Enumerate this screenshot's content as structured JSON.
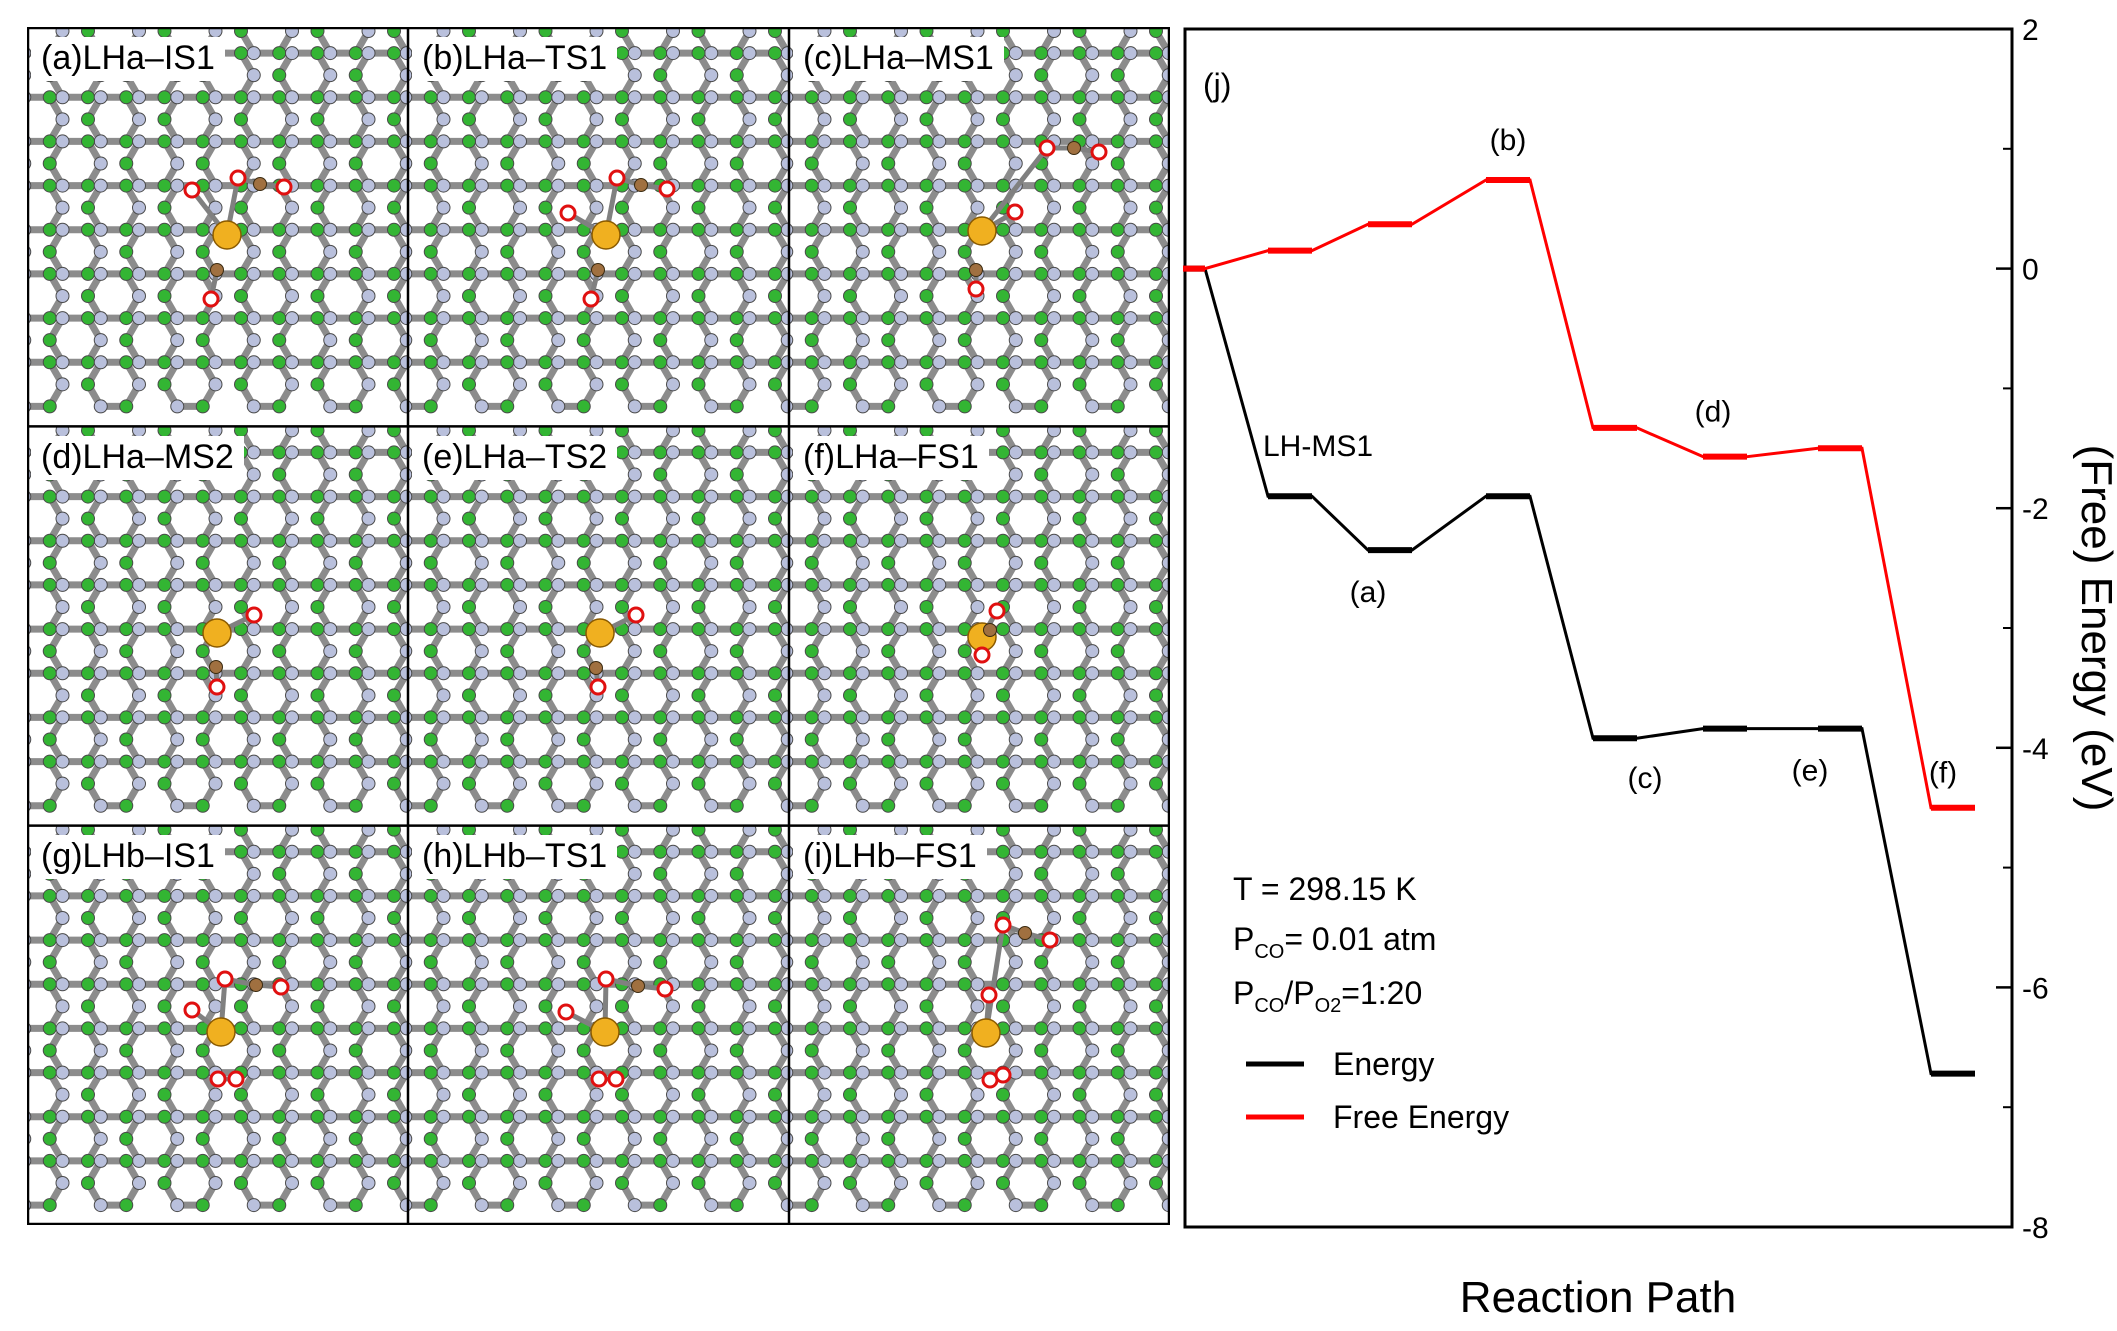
{
  "panels": [
    {
      "label": "(a)LHa–IS1"
    },
    {
      "label": "(b)LHa–TS1"
    },
    {
      "label": "(c)LHa–MS1"
    },
    {
      "label": "(d)LHa–MS2"
    },
    {
      "label": "(e)LHa–TS2"
    },
    {
      "label": "(f)LHa–FS1"
    },
    {
      "label": "(g)LHb–IS1"
    },
    {
      "label": "(h)LHb–TS1"
    },
    {
      "label": "(i)LHb–FS1"
    }
  ],
  "atom_colors": {
    "lattice_a": "#33b533",
    "lattice_b": "#b9c0dc",
    "bond": "#8c8c8c",
    "metal": "#f0b020",
    "carbon": "#a07040",
    "oxygen": "#e01010"
  },
  "chart_data": {
    "type": "line",
    "panel_label": "(j)",
    "xlabel": "Reaction Path",
    "ylabel": "(Free) Energy (eV)",
    "ylim": [
      -8,
      2
    ],
    "yticks": [
      2,
      0,
      -2,
      -4,
      -6,
      -8
    ],
    "x_steps": [
      0,
      1,
      2,
      3,
      4,
      5,
      6,
      7
    ],
    "series": [
      {
        "name": "Energy",
        "color": "#000000",
        "values": [
          0.0,
          -1.9,
          -2.35,
          -1.9,
          -3.92,
          -3.84,
          -3.84,
          -6.72
        ]
      },
      {
        "name": "Free Energy",
        "color": "#ff0000",
        "values": [
          0.0,
          0.15,
          0.37,
          0.74,
          -1.33,
          -1.57,
          -1.5,
          -4.5
        ]
      }
    ],
    "annotations": [
      {
        "text": "LH-MS1",
        "series": 0,
        "step": 1,
        "pos": "above"
      },
      {
        "text": "(a)",
        "series": 0,
        "step": 2,
        "pos": "below"
      },
      {
        "text": "(b)",
        "series": 1,
        "step": 3,
        "pos": "above"
      },
      {
        "text": "(c)",
        "series": 0,
        "step": 4,
        "pos": "below"
      },
      {
        "text": "(d)",
        "series": 1,
        "step": 5,
        "pos": "above"
      },
      {
        "text": "(e)",
        "series": 0,
        "step": 6,
        "pos": "below"
      },
      {
        "text": "(f)",
        "series": 1,
        "step": 7,
        "pos": "left"
      }
    ],
    "conditions": {
      "temperature": "T = 298.15 K",
      "pco_prefix": "P",
      "pco_sub": "CO",
      "pco_value": "= 0.01 atm",
      "ratio_prefix": "P",
      "ratio_sub1": "CO",
      "ratio_slash": "/P",
      "ratio_sub2": "O2",
      "ratio_value": "=1:20"
    }
  }
}
